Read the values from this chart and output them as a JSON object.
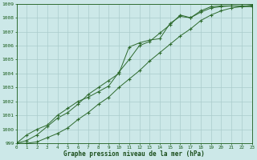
{
  "title": "Graphe pression niveau de la mer (hPa)",
  "hours": [
    0,
    1,
    2,
    3,
    4,
    5,
    6,
    7,
    8,
    9,
    10,
    11,
    12,
    13,
    14,
    15,
    16,
    17,
    18,
    19,
    20,
    21,
    22,
    23
  ],
  "ylim": [
    999,
    1009
  ],
  "yticks": [
    999,
    1000,
    1001,
    1002,
    1003,
    1004,
    1005,
    1006,
    1007,
    1008,
    1009
  ],
  "line1": [
    999.0,
    999.2,
    999.6,
    1000.2,
    1000.8,
    1001.2,
    1001.8,
    1002.5,
    1003.0,
    1003.5,
    1004.0,
    1005.9,
    1006.2,
    1006.4,
    1006.5,
    1007.6,
    1008.1,
    1008.0,
    1008.5,
    1008.8,
    1008.85,
    1008.85,
    1008.8,
    1008.8
  ],
  "line2": [
    999.0,
    999.6,
    1000.0,
    1000.3,
    1001.0,
    1001.5,
    1002.0,
    1002.3,
    1002.7,
    1003.1,
    1004.1,
    1005.0,
    1006.0,
    1006.3,
    1006.9,
    1007.5,
    1008.2,
    1008.0,
    1008.4,
    1008.7,
    1008.8,
    1008.85,
    1008.85,
    1008.85
  ],
  "line3": [
    999.0,
    999.0,
    999.1,
    999.4,
    999.7,
    1000.1,
    1000.7,
    1001.2,
    1001.8,
    1002.3,
    1003.0,
    1003.6,
    1004.2,
    1004.9,
    1005.5,
    1006.1,
    1006.7,
    1007.2,
    1007.8,
    1008.2,
    1008.5,
    1008.7,
    1008.8,
    1008.9
  ],
  "line_color": "#2d6a2d",
  "bg_color": "#cce8e8",
  "grid_color": "#aacccc",
  "text_color": "#1a5c1a",
  "title_color": "#1a4d1a",
  "figsize": [
    3.2,
    2.0
  ],
  "dpi": 100
}
